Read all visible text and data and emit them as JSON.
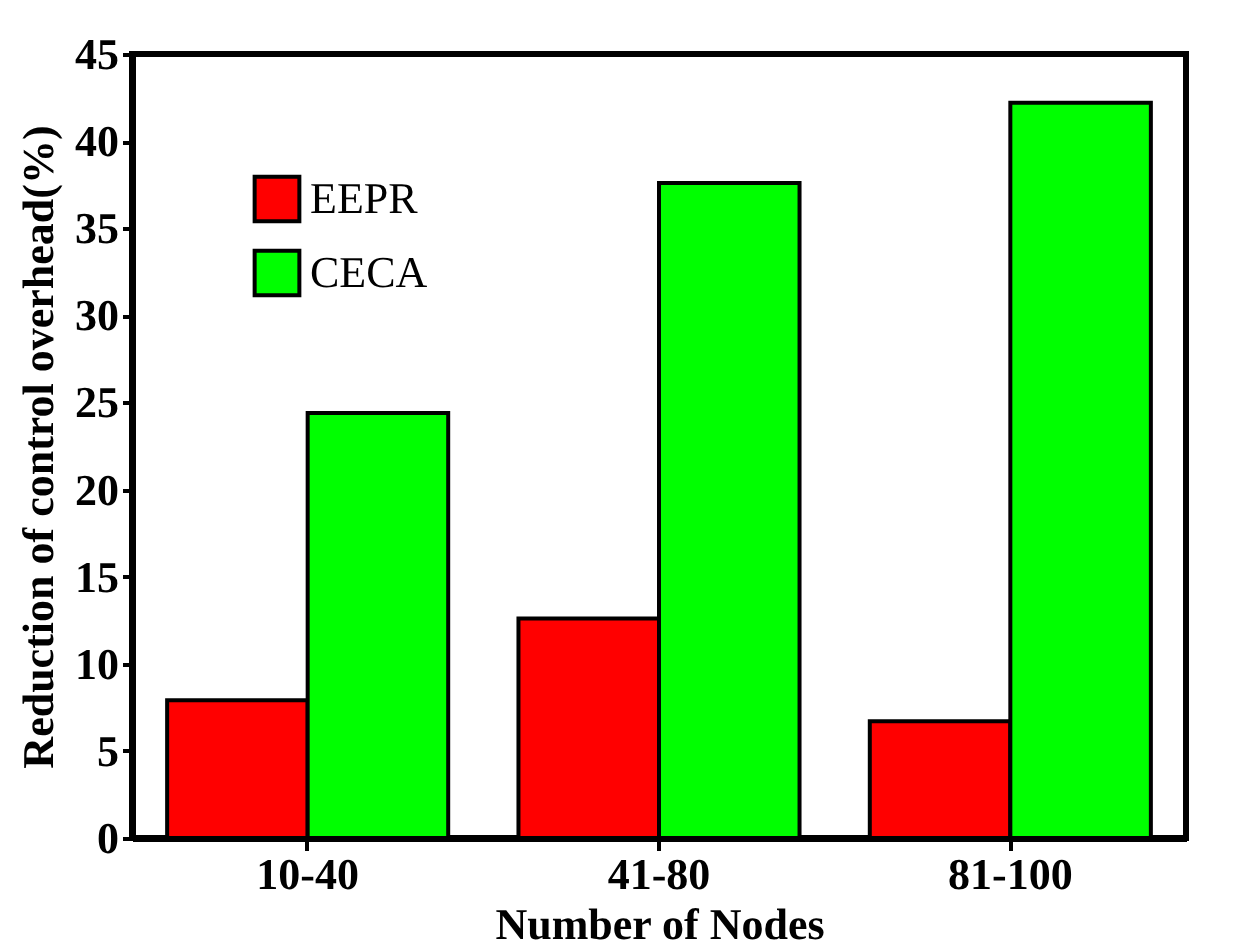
{
  "chart_data": {
    "type": "bar",
    "xlabel": "Number of Nodes",
    "ylabel": "Reduction of control overhead(%)",
    "categories": [
      "10-40",
      "41-80",
      "81-100"
    ],
    "series": [
      {
        "name": "EEPR",
        "color": "#ff0000",
        "values": [
          7.9,
          12.6,
          6.7
        ]
      },
      {
        "name": "CECA",
        "color": "#00ff00",
        "values": [
          24.4,
          37.6,
          42.2
        ]
      }
    ],
    "ylim": [
      0,
      45
    ],
    "yticks": [
      0,
      5,
      10,
      15,
      20,
      25,
      30,
      35,
      40,
      45
    ],
    "grid": false,
    "legend": "top left"
  }
}
